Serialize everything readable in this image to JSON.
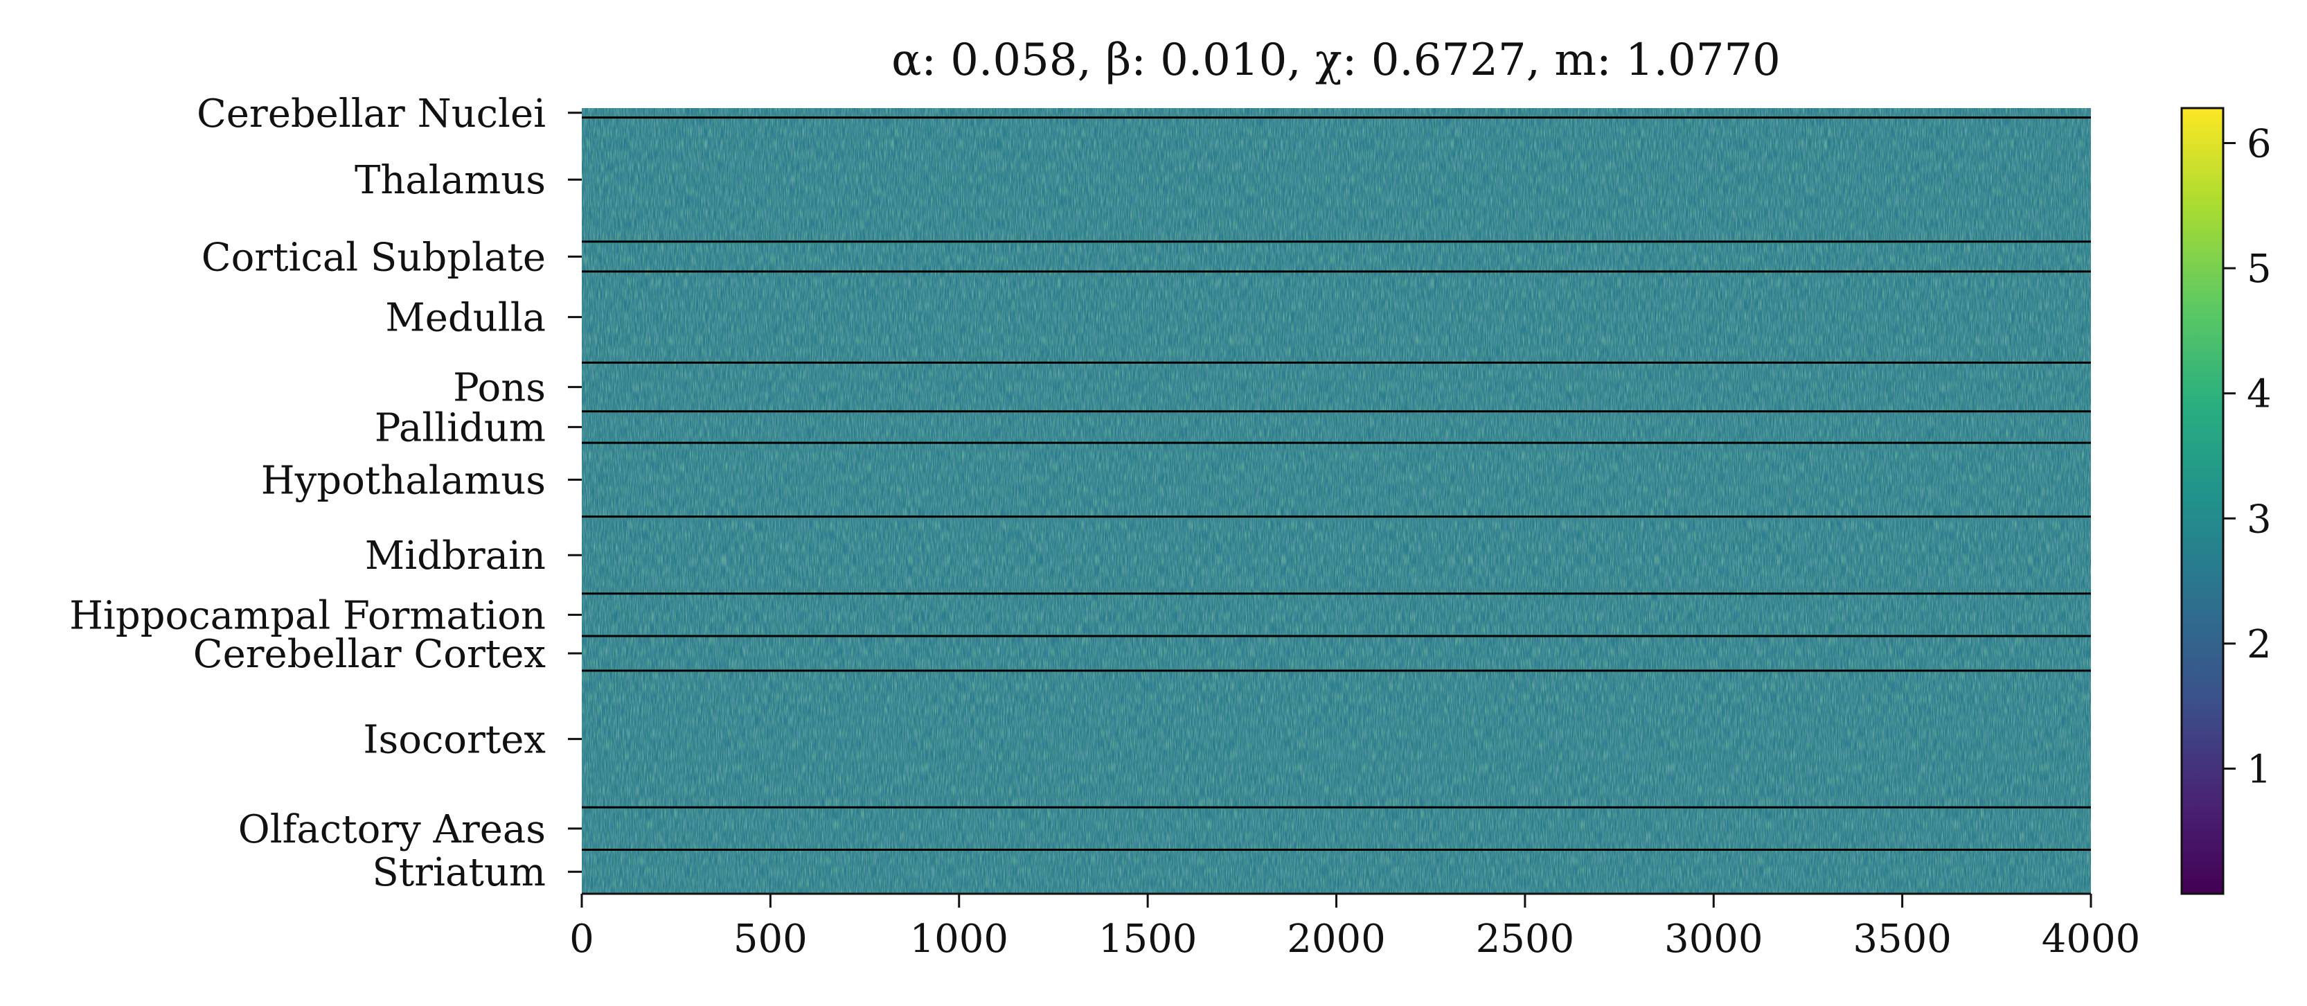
{
  "chart_data": {
    "type": "heatmap",
    "title": "α: 0.058, β: 0.010, χ: 0.6727, m: 1.0770",
    "xlabel": "",
    "ylabel": "",
    "xlim": [
      0,
      4000
    ],
    "x_ticks": [
      0,
      500,
      1000,
      1500,
      2000,
      2500,
      3000,
      3500,
      4000
    ],
    "regions": [
      {
        "name": "Cerebellar Nuclei",
        "start": 0.0,
        "end": 0.012
      },
      {
        "name": "Thalamus",
        "start": 0.012,
        "end": 0.17
      },
      {
        "name": "Cortical Subplate",
        "start": 0.17,
        "end": 0.208
      },
      {
        "name": "Medulla",
        "start": 0.208,
        "end": 0.324
      },
      {
        "name": "Pons",
        "start": 0.324,
        "end": 0.386
      },
      {
        "name": "Pallidum",
        "start": 0.386,
        "end": 0.426
      },
      {
        "name": "Hypothalamus",
        "start": 0.426,
        "end": 0.52
      },
      {
        "name": "Midbrain",
        "start": 0.52,
        "end": 0.618
      },
      {
        "name": "Hippocampal Formation",
        "start": 0.618,
        "end": 0.672
      },
      {
        "name": "Cerebellar Cortex",
        "start": 0.672,
        "end": 0.716
      },
      {
        "name": "Isocortex",
        "start": 0.716,
        "end": 0.89
      },
      {
        "name": "Olfactory Areas",
        "start": 0.89,
        "end": 0.944
      },
      {
        "name": "Striatum",
        "start": 0.944,
        "end": 1.0
      }
    ],
    "colorbar": {
      "colormap": "viridis",
      "range": [
        0,
        6.28
      ],
      "ticks": [
        1,
        2,
        3,
        4,
        5,
        6
      ]
    },
    "colors": {
      "cmap_low": "#440154",
      "cmap_q1": "#3b528b",
      "cmap_mid": "#21918c",
      "cmap_q3": "#5ec962",
      "cmap_high": "#fde725",
      "separator": "#000000"
    }
  }
}
